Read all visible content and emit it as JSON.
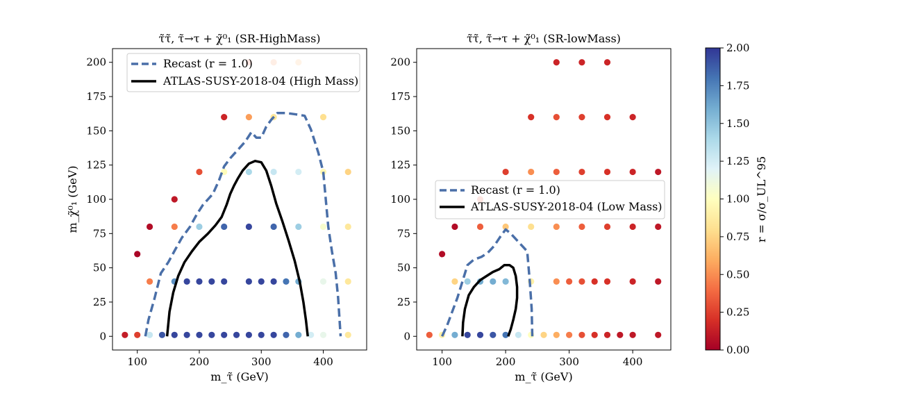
{
  "colors": {
    "recast_line": "#4a6fa8",
    "atlas_line": "#000000",
    "colormap_stops": [
      "#a50026",
      "#d73027",
      "#f46d43",
      "#fdae61",
      "#fee090",
      "#ffffbf",
      "#e0f3f8",
      "#abd9e9",
      "#74add1",
      "#4575b4",
      "#313695"
    ]
  },
  "chart_data": [
    {
      "type": "scatter",
      "title": "τ̃τ̃, τ̃→τ + χ̃⁰₁ (SR-HighMass)",
      "xlabel": "m_τ̃ (GeV)",
      "ylabel": "m_χ̃⁰₁ (GeV)",
      "xlim": [
        60,
        470
      ],
      "ylim": [
        -10,
        210
      ],
      "xticks": [
        100,
        200,
        300,
        400
      ],
      "yticks": [
        0,
        25,
        50,
        75,
        100,
        125,
        150,
        175,
        200
      ],
      "legend_placement": "top-left",
      "points": [
        {
          "x": 80,
          "y": 1,
          "r": 0.12
        },
        {
          "x": 100,
          "y": 1,
          "r": 0.25
        },
        {
          "x": 120,
          "y": 1,
          "r": 1.3
        },
        {
          "x": 140,
          "y": 1,
          "r": 1.9
        },
        {
          "x": 160,
          "y": 1,
          "r": 1.95
        },
        {
          "x": 180,
          "y": 1,
          "r": 1.95
        },
        {
          "x": 200,
          "y": 1,
          "r": 1.95
        },
        {
          "x": 220,
          "y": 1,
          "r": 1.95
        },
        {
          "x": 240,
          "y": 1,
          "r": 1.95
        },
        {
          "x": 260,
          "y": 1,
          "r": 1.95
        },
        {
          "x": 280,
          "y": 1,
          "r": 1.95
        },
        {
          "x": 300,
          "y": 1,
          "r": 1.95
        },
        {
          "x": 320,
          "y": 1,
          "r": 1.95
        },
        {
          "x": 340,
          "y": 1,
          "r": 1.85
        },
        {
          "x": 360,
          "y": 1,
          "r": 1.6
        },
        {
          "x": 380,
          "y": 1,
          "r": 1.25
        },
        {
          "x": 400,
          "y": 1,
          "r": 1.15
        },
        {
          "x": 440,
          "y": 1,
          "r": 0.85
        },
        {
          "x": 120,
          "y": 40,
          "r": 0.45
        },
        {
          "x": 160,
          "y": 40,
          "r": 1.7
        },
        {
          "x": 180,
          "y": 40,
          "r": 1.95
        },
        {
          "x": 200,
          "y": 40,
          "r": 1.95
        },
        {
          "x": 220,
          "y": 40,
          "r": 1.95
        },
        {
          "x": 240,
          "y": 40,
          "r": 1.95
        },
        {
          "x": 280,
          "y": 40,
          "r": 1.95
        },
        {
          "x": 300,
          "y": 40,
          "r": 1.95
        },
        {
          "x": 320,
          "y": 40,
          "r": 1.95
        },
        {
          "x": 340,
          "y": 40,
          "r": 1.8
        },
        {
          "x": 360,
          "y": 40,
          "r": 1.6
        },
        {
          "x": 400,
          "y": 40,
          "r": 1.15
        },
        {
          "x": 440,
          "y": 40,
          "r": 0.85
        },
        {
          "x": 100,
          "y": 60,
          "r": 0.02
        },
        {
          "x": 120,
          "y": 80,
          "r": 0.05
        },
        {
          "x": 160,
          "y": 80,
          "r": 0.45
        },
        {
          "x": 200,
          "y": 80,
          "r": 1.45
        },
        {
          "x": 240,
          "y": 80,
          "r": 1.85
        },
        {
          "x": 280,
          "y": 80,
          "r": 1.95
        },
        {
          "x": 320,
          "y": 80,
          "r": 1.85
        },
        {
          "x": 360,
          "y": 80,
          "r": 1.45
        },
        {
          "x": 400,
          "y": 80,
          "r": 1.05
        },
        {
          "x": 440,
          "y": 80,
          "r": 0.85
        },
        {
          "x": 160,
          "y": 100,
          "r": 0.1
        },
        {
          "x": 200,
          "y": 120,
          "r": 0.3
        },
        {
          "x": 240,
          "y": 120,
          "r": 0.98
        },
        {
          "x": 280,
          "y": 120,
          "r": 1.4
        },
        {
          "x": 320,
          "y": 120,
          "r": 1.3
        },
        {
          "x": 360,
          "y": 120,
          "r": 1.25
        },
        {
          "x": 400,
          "y": 120,
          "r": 0.95
        },
        {
          "x": 440,
          "y": 120,
          "r": 0.75
        },
        {
          "x": 240,
          "y": 160,
          "r": 0.15
        },
        {
          "x": 280,
          "y": 160,
          "r": 0.55
        },
        {
          "x": 320,
          "y": 160,
          "r": 0.85
        },
        {
          "x": 400,
          "y": 160,
          "r": 0.8
        },
        {
          "x": 280,
          "y": 200,
          "r": 0.3
        },
        {
          "x": 320,
          "y": 200,
          "r": 0.5
        },
        {
          "x": 360,
          "y": 200,
          "r": 0.6
        }
      ],
      "series": [
        {
          "name": "Recast (r = 1.0)",
          "style": "dashed",
          "x": [
            113,
            118,
            128,
            138,
            150,
            162,
            172,
            185,
            196,
            206,
            214,
            222,
            232,
            240,
            250,
            262,
            274,
            284,
            292,
            300,
            308,
            316,
            326,
            340,
            356,
            370,
            380,
            392,
            400,
            404,
            408,
            414,
            420,
            424,
            428
          ],
          "y": [
            0,
            12,
            28,
            46,
            54,
            64,
            72,
            80,
            89,
            96,
            100,
            104,
            114,
            124,
            130,
            136,
            142,
            149,
            145,
            145,
            153,
            158,
            163,
            163,
            162,
            161,
            151,
            134,
            120,
            100,
            80,
            62,
            46,
            28,
            0
          ]
        },
        {
          "name": "ATLAS-SUSY-2018-04 (High Mass)",
          "style": "solid",
          "x": [
            148,
            152,
            158,
            166,
            176,
            188,
            200,
            214,
            226,
            236,
            244,
            250,
            256,
            262,
            270,
            280,
            290,
            300,
            308,
            316,
            324,
            334,
            344,
            354,
            362,
            368,
            372,
            374,
            375
          ],
          "y": [
            0,
            18,
            32,
            44,
            54,
            62,
            69,
            75,
            81,
            87,
            96,
            104,
            110,
            115,
            121,
            126,
            128,
            127,
            121,
            110,
            97,
            84,
            70,
            55,
            40,
            25,
            12,
            4,
            0
          ]
        }
      ]
    },
    {
      "type": "scatter",
      "title": "τ̃τ̃, τ̃→τ + χ̃⁰₁ (SR-lowMass)",
      "xlabel": "m_τ̃ (GeV)",
      "ylabel": "",
      "xlim": [
        60,
        460
      ],
      "ylim": [
        -10,
        210
      ],
      "xticks": [
        100,
        200,
        300,
        400
      ],
      "yticks": [
        0,
        25,
        50,
        75,
        100,
        125,
        150,
        175,
        200
      ],
      "legend_placement": "center-left",
      "points": [
        {
          "x": 80,
          "y": 1,
          "r": 0.35
        },
        {
          "x": 100,
          "y": 1,
          "r": 0.9
        },
        {
          "x": 120,
          "y": 1,
          "r": 1.6
        },
        {
          "x": 140,
          "y": 1,
          "r": 1.95
        },
        {
          "x": 160,
          "y": 1,
          "r": 1.95
        },
        {
          "x": 180,
          "y": 1,
          "r": 1.9
        },
        {
          "x": 200,
          "y": 1,
          "r": 1.8
        },
        {
          "x": 220,
          "y": 1,
          "r": 1.3
        },
        {
          "x": 240,
          "y": 1,
          "r": 1.0
        },
        {
          "x": 260,
          "y": 1,
          "r": 0.75
        },
        {
          "x": 280,
          "y": 1,
          "r": 0.6
        },
        {
          "x": 300,
          "y": 1,
          "r": 0.45
        },
        {
          "x": 320,
          "y": 1,
          "r": 0.3
        },
        {
          "x": 340,
          "y": 1,
          "r": 0.2
        },
        {
          "x": 360,
          "y": 1,
          "r": 0.15
        },
        {
          "x": 380,
          "y": 1,
          "r": 0.1
        },
        {
          "x": 400,
          "y": 1,
          "r": 0.1
        },
        {
          "x": 440,
          "y": 1,
          "r": 0.1
        },
        {
          "x": 120,
          "y": 40,
          "r": 0.75
        },
        {
          "x": 140,
          "y": 40,
          "r": 1.45
        },
        {
          "x": 160,
          "y": 40,
          "r": 1.6
        },
        {
          "x": 180,
          "y": 40,
          "r": 1.6
        },
        {
          "x": 200,
          "y": 40,
          "r": 1.55
        },
        {
          "x": 240,
          "y": 40,
          "r": 0.9
        },
        {
          "x": 280,
          "y": 40,
          "r": 0.5
        },
        {
          "x": 300,
          "y": 40,
          "r": 0.35
        },
        {
          "x": 320,
          "y": 40,
          "r": 0.3
        },
        {
          "x": 340,
          "y": 40,
          "r": 0.2
        },
        {
          "x": 360,
          "y": 40,
          "r": 0.2
        },
        {
          "x": 400,
          "y": 40,
          "r": 0.15
        },
        {
          "x": 440,
          "y": 40,
          "r": 0.1
        },
        {
          "x": 100,
          "y": 60,
          "r": 0.05
        },
        {
          "x": 120,
          "y": 80,
          "r": 0.05
        },
        {
          "x": 160,
          "y": 80,
          "r": 0.35
        },
        {
          "x": 200,
          "y": 80,
          "r": 0.7
        },
        {
          "x": 240,
          "y": 80,
          "r": 0.8
        },
        {
          "x": 280,
          "y": 80,
          "r": 0.5
        },
        {
          "x": 320,
          "y": 80,
          "r": 0.35
        },
        {
          "x": 360,
          "y": 80,
          "r": 0.25
        },
        {
          "x": 400,
          "y": 80,
          "r": 0.15
        },
        {
          "x": 440,
          "y": 80,
          "r": 0.1
        },
        {
          "x": 160,
          "y": 100,
          "r": 0.3
        },
        {
          "x": 200,
          "y": 120,
          "r": 0.25
        },
        {
          "x": 240,
          "y": 120,
          "r": 0.5
        },
        {
          "x": 280,
          "y": 120,
          "r": 0.35
        },
        {
          "x": 320,
          "y": 120,
          "r": 0.25
        },
        {
          "x": 360,
          "y": 120,
          "r": 0.2
        },
        {
          "x": 400,
          "y": 120,
          "r": 0.15
        },
        {
          "x": 440,
          "y": 120,
          "r": 0.1
        },
        {
          "x": 240,
          "y": 160,
          "r": 0.2
        },
        {
          "x": 280,
          "y": 160,
          "r": 0.3
        },
        {
          "x": 320,
          "y": 160,
          "r": 0.25
        },
        {
          "x": 360,
          "y": 160,
          "r": 0.2
        },
        {
          "x": 400,
          "y": 160,
          "r": 0.15
        },
        {
          "x": 280,
          "y": 200,
          "r": 0.15
        },
        {
          "x": 320,
          "y": 200,
          "r": 0.15
        },
        {
          "x": 360,
          "y": 200,
          "r": 0.15
        }
      ],
      "series": [
        {
          "name": "Recast (r = 1.0)",
          "style": "dashed",
          "x": [
            100,
            108,
            116,
            124,
            132,
            140,
            150,
            162,
            172,
            182,
            192,
            200,
            208,
            218,
            226,
            234,
            238,
            241,
            242
          ],
          "y": [
            0,
            8,
            18,
            28,
            40,
            52,
            56,
            58,
            61,
            66,
            73,
            78,
            75,
            70,
            66,
            62,
            40,
            20,
            0
          ]
        },
        {
          "name": "ATLAS-SUSY-2018-04 (Low Mass)",
          "style": "solid",
          "x": [
            132,
            133,
            136,
            142,
            150,
            160,
            170,
            180,
            190,
            198,
            206,
            212,
            216,
            218,
            218,
            216,
            212,
            208,
            204
          ],
          "y": [
            0,
            10,
            20,
            30,
            36,
            41,
            44,
            47,
            49,
            52,
            52,
            50,
            44,
            36,
            28,
            20,
            12,
            5,
            0
          ]
        }
      ]
    }
  ],
  "colorbar": {
    "label": "r = σ/σ_UL^95",
    "min": 0.0,
    "max": 2.0,
    "ticks": [
      "0.00",
      "0.25",
      "0.50",
      "0.75",
      "1.00",
      "1.25",
      "1.50",
      "1.75",
      "2.00"
    ]
  }
}
